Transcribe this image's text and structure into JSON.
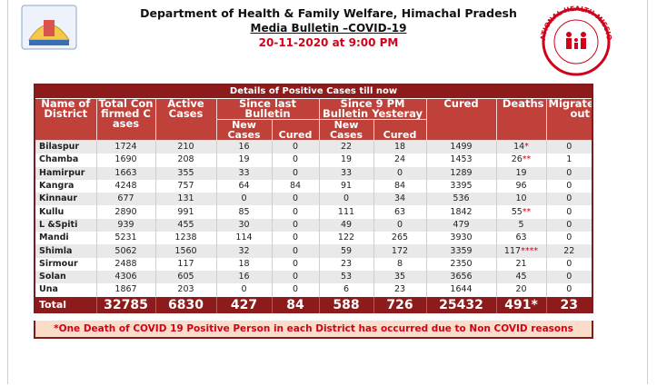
{
  "header": {
    "title": "Department of Health & Family Welfare, Himachal Pradesh",
    "subtitle": "Media Bulletin –COVID-19",
    "date": "20-11-2020 at 9:00 PM",
    "logo_text": "NATIONAL HEALTH MISSION"
  },
  "table": {
    "caption": "Details of Positive Cases till now",
    "columns": [
      "Name of District",
      "Total Confirmed Cases",
      "Active Cases",
      "Since last Bulletin",
      "Since 9 PM Bulletin Yesteray",
      "Cured",
      "Deaths",
      "Migrated out"
    ],
    "subcolumns": [
      "New Cases",
      "Cured",
      "New Cases",
      "Cured"
    ],
    "rows": [
      [
        "Bilaspur",
        1724,
        210,
        16,
        0,
        22,
        18,
        1499,
        "14*",
        0
      ],
      [
        "Chamba",
        1690,
        208,
        19,
        0,
        19,
        24,
        1453,
        "26**",
        1
      ],
      [
        "Hamirpur",
        1663,
        355,
        33,
        0,
        33,
        0,
        1289,
        19,
        0
      ],
      [
        "Kangra",
        4248,
        757,
        64,
        84,
        91,
        84,
        3395,
        96,
        0
      ],
      [
        "Kinnaur",
        677,
        131,
        0,
        0,
        0,
        34,
        536,
        10,
        0
      ],
      [
        "Kullu",
        2890,
        991,
        85,
        0,
        111,
        63,
        1842,
        "55**",
        0
      ],
      [
        "L &Spiti",
        939,
        455,
        30,
        0,
        49,
        0,
        479,
        5,
        0
      ],
      [
        "Mandi",
        5231,
        1238,
        114,
        0,
        122,
        265,
        3930,
        63,
        0
      ],
      [
        "Shimla",
        5062,
        1560,
        32,
        0,
        59,
        172,
        3359,
        "117****",
        22
      ],
      [
        "Sirmour",
        2488,
        117,
        18,
        0,
        23,
        8,
        2350,
        21,
        0
      ],
      [
        "Solan",
        4306,
        605,
        16,
        0,
        53,
        35,
        3656,
        45,
        0
      ],
      [
        "Una",
        1867,
        203,
        0,
        0,
        6,
        23,
        1644,
        20,
        0
      ]
    ],
    "total": [
      "Total",
      32785,
      6830,
      427,
      84,
      588,
      726,
      25432,
      "491*",
      23
    ],
    "footnote": "*One Death of COVID 19 Positive Person in each District has occurred due to Non COVID reasons"
  }
}
